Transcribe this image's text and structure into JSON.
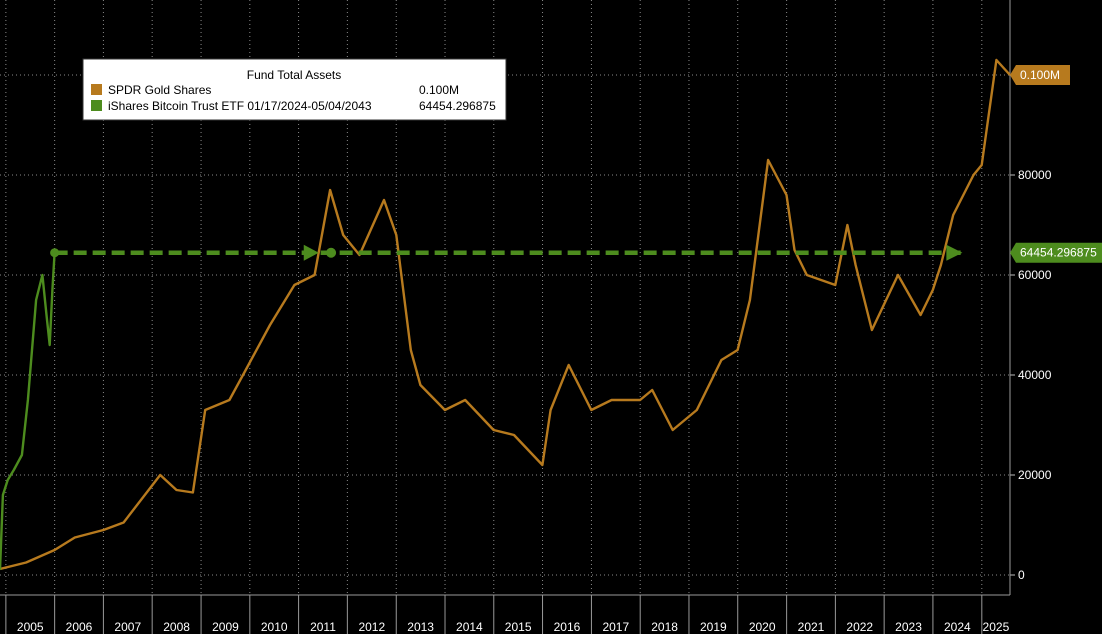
{
  "chart_data": {
    "type": "line",
    "legend": {
      "title": "Fund Total Assets",
      "position": "top-left",
      "entries": [
        {
          "name": "SPDR Gold Shares",
          "value": "0.100M",
          "color": "#b77a1e"
        },
        {
          "name": "iShares Bitcoin Trust ETF 01/17/2024-05/04/2043",
          "value": "64454.296875",
          "color": "#4d8c1e"
        }
      ]
    },
    "x_axis": {
      "type": "date",
      "tick_labels": [
        "2005",
        "2006",
        "2007",
        "2008",
        "2009",
        "2010",
        "2011",
        "2012",
        "2013",
        "2014",
        "2015",
        "2016",
        "2017",
        "2018",
        "2019",
        "2020",
        "2021",
        "2022",
        "2023",
        "2024",
        "2025"
      ],
      "range": [
        "2004-11-18",
        "2025-07-31"
      ]
    },
    "y_axis": {
      "side": "right",
      "tick_labels": [
        "0",
        "20000",
        "40000",
        "60000",
        "80000"
      ],
      "ticks": [
        0,
        20000,
        40000,
        60000,
        80000
      ],
      "range": [
        -4000,
        115000
      ],
      "grid": true
    },
    "series": [
      {
        "name": "SPDR Gold Shares",
        "color": "#b77a1e",
        "last_value_label": "0.100M",
        "points": [
          [
            "2004-11-18",
            1200
          ],
          [
            "2005-06-01",
            2500
          ],
          [
            "2006-01-01",
            5000
          ],
          [
            "2006-06-01",
            7500
          ],
          [
            "2007-01-01",
            9000
          ],
          [
            "2007-06-01",
            10500
          ],
          [
            "2008-03-01",
            20000
          ],
          [
            "2008-07-01",
            17000
          ],
          [
            "2008-11-01",
            16500
          ],
          [
            "2009-02-01",
            33000
          ],
          [
            "2009-08-01",
            35000
          ],
          [
            "2009-12-01",
            41000
          ],
          [
            "2010-06-01",
            50000
          ],
          [
            "2010-12-01",
            58000
          ],
          [
            "2011-05-01",
            60000
          ],
          [
            "2011-08-25",
            77000
          ],
          [
            "2011-12-01",
            68000
          ],
          [
            "2012-04-01",
            64000
          ],
          [
            "2012-10-01",
            75000
          ],
          [
            "2013-01-01",
            68000
          ],
          [
            "2013-04-20",
            45000
          ],
          [
            "2013-07-01",
            38000
          ],
          [
            "2013-12-31",
            33000
          ],
          [
            "2014-06-01",
            35000
          ],
          [
            "2014-12-31",
            29000
          ],
          [
            "2015-06-01",
            28000
          ],
          [
            "2015-12-31",
            22000
          ],
          [
            "2016-03-01",
            33000
          ],
          [
            "2016-07-15",
            42000
          ],
          [
            "2016-12-31",
            33000
          ],
          [
            "2017-06-01",
            35000
          ],
          [
            "2017-12-31",
            35000
          ],
          [
            "2018-04-01",
            37000
          ],
          [
            "2018-09-01",
            29000
          ],
          [
            "2019-03-01",
            33000
          ],
          [
            "2019-09-01",
            43000
          ],
          [
            "2019-12-31",
            45000
          ],
          [
            "2020-04-01",
            55000
          ],
          [
            "2020-08-15",
            83000
          ],
          [
            "2020-12-31",
            76000
          ],
          [
            "2021-03-01",
            65000
          ],
          [
            "2021-06-01",
            60000
          ],
          [
            "2021-12-31",
            58000
          ],
          [
            "2022-04-01",
            70000
          ],
          [
            "2022-06-01",
            62000
          ],
          [
            "2022-10-01",
            49000
          ],
          [
            "2023-04-15",
            60000
          ],
          [
            "2023-10-01",
            52000
          ],
          [
            "2023-12-31",
            57000
          ],
          [
            "2024-03-01",
            62000
          ],
          [
            "2024-06-01",
            72000
          ],
          [
            "2024-10-31",
            80000
          ],
          [
            "2024-12-31",
            82000
          ],
          [
            "2025-04-20",
            103000
          ],
          [
            "2025-07-31",
            100000
          ]
        ]
      },
      {
        "name": "iShares Bitcoin Trust ETF 01/17/2024-05/04/2043",
        "color": "#4d8c1e",
        "last_value_label": "64454.296875",
        "points": [
          [
            "2004-11-18",
            1000
          ],
          [
            "2004-12-10",
            16000
          ],
          [
            "2005-01-15",
            19000
          ],
          [
            "2005-03-01",
            21000
          ],
          [
            "2005-05-01",
            24000
          ],
          [
            "2005-06-15",
            35000
          ],
          [
            "2005-08-15",
            55000
          ],
          [
            "2005-10-01",
            60000
          ],
          [
            "2005-11-01",
            52000
          ],
          [
            "2005-11-25",
            46000
          ],
          [
            "2005-12-15",
            57000
          ],
          [
            "2006-01-01",
            64454.296875
          ]
        ],
        "dashed_extension": {
          "from": [
            "2006-01-01",
            64454.296875
          ],
          "to": [
            "2024-08-01",
            64454.296875
          ],
          "arrow_marker_at": "2011-06-01",
          "dot_marker_at": "2011-09-01"
        }
      }
    ]
  }
}
